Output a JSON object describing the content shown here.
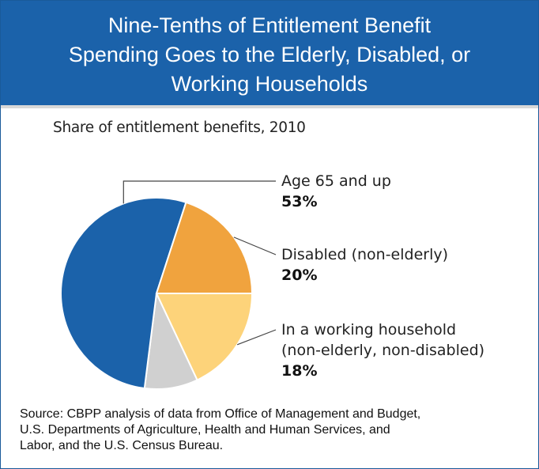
{
  "header": {
    "title_lines": [
      "Nine-Tenths of Entitlement Benefit",
      "Spending Goes to the Elderly, Disabled, or",
      "Working Households"
    ]
  },
  "chart_data": {
    "type": "pie",
    "title": "Share of entitlement benefits, 2010",
    "start_angle_deg": 0,
    "direction": "clockwise",
    "slices": [
      {
        "key": "working",
        "label_lines": [
          "In a working household",
          "(non-elderly, non-disabled)"
        ],
        "value": 18,
        "value_label": "18%",
        "color": "#fdd37a",
        "labeled": true
      },
      {
        "key": "other",
        "label_lines": [],
        "value": 9,
        "value_label": "",
        "color": "#d0d0d0",
        "labeled": false
      },
      {
        "key": "elderly",
        "label_lines": [
          "Age 65 and up"
        ],
        "value": 53,
        "value_label": "53%",
        "color": "#1b62aa",
        "labeled": true
      },
      {
        "key": "disabled",
        "label_lines": [
          "Disabled (non-elderly)"
        ],
        "value": 20,
        "value_label": "20%",
        "color": "#f0a33e",
        "labeled": true
      }
    ]
  },
  "source": {
    "lines": [
      "Source: CBPP analysis of data from Office of Management and Budget,",
      "U.S. Departments of Agriculture, Health and Human Services, and",
      "Labor, and the U.S. Census Bureau."
    ]
  }
}
